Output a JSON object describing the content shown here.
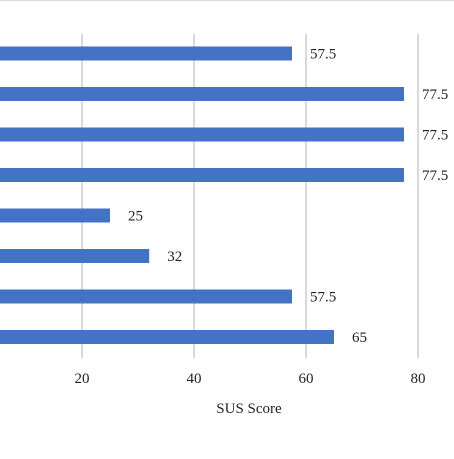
{
  "chart_data": {
    "type": "bar",
    "orientation": "horizontal",
    "series": [
      {
        "values": [
          57.5,
          77.5,
          77.5,
          77.5,
          25,
          32,
          57.5,
          65
        ],
        "color": "#4472C4"
      }
    ],
    "data_labels": [
      "57.5",
      "77.5",
      "77.5",
      "77.5",
      "25",
      "32",
      "57.5",
      "65"
    ],
    "x_ticks": [
      "20",
      "40",
      "60",
      "80"
    ],
    "x_tick_values": [
      20,
      40,
      60,
      80
    ],
    "xlabel": "SUS Score",
    "ylabel": "",
    "xlim": [
      5.7,
      86
    ],
    "grid": true,
    "legend": "none"
  }
}
